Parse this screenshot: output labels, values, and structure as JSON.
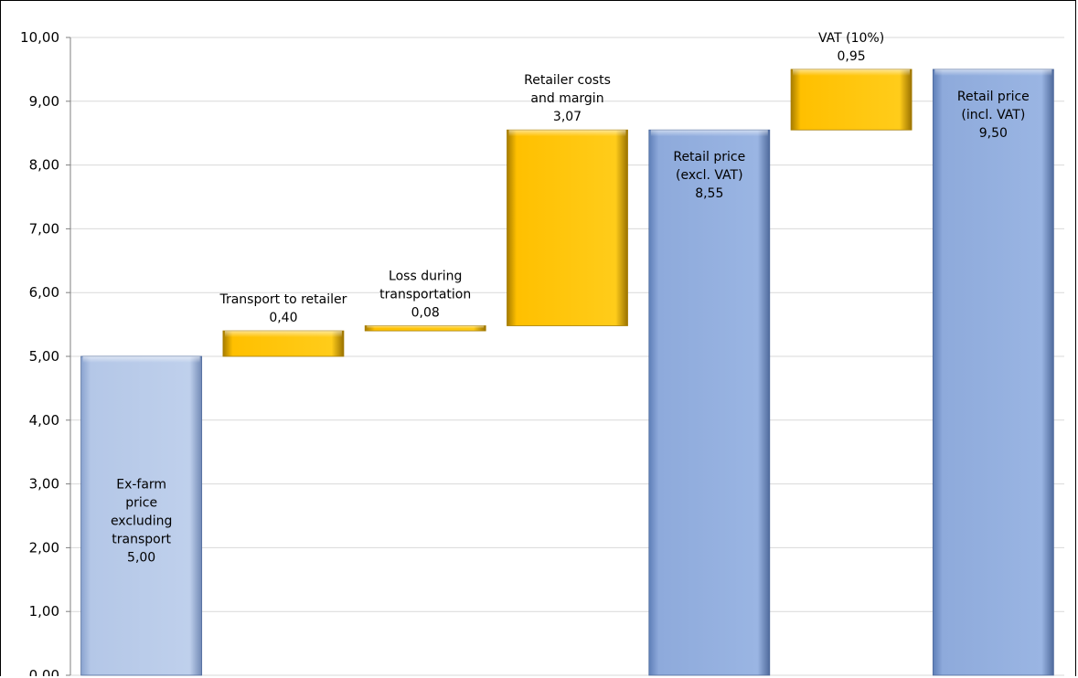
{
  "chart_data": {
    "type": "bar",
    "subtype": "waterfall",
    "ylim": [
      0,
      10
    ],
    "yticks": [
      "0,00",
      "1,00",
      "2,00",
      "3,00",
      "4,00",
      "5,00",
      "6,00",
      "7,00",
      "8,00",
      "9,00",
      "10,00"
    ],
    "grid": true,
    "colors": {
      "total": "#8eaadb",
      "total_first": "#b4c7e7",
      "step": "#ffc000",
      "step_edge": "#a67c00",
      "grid": "#d9d9d9"
    },
    "bars": [
      {
        "kind": "total",
        "label_lines": [
          "Ex-farm",
          "price",
          "excluding",
          "transport",
          "5,00"
        ],
        "base": 0,
        "value": 5.0,
        "label_pos": "inside"
      },
      {
        "kind": "step",
        "label_lines": [
          "Transport to retailer",
          "0,40"
        ],
        "base": 5.0,
        "value": 0.4,
        "label_pos": "above"
      },
      {
        "kind": "step",
        "label_lines": [
          "Loss during",
          "transportation",
          "0,08"
        ],
        "base": 5.4,
        "value": 0.08,
        "label_pos": "above"
      },
      {
        "kind": "step",
        "label_lines": [
          "Retailer costs",
          "and margin",
          "3,07"
        ],
        "base": 5.48,
        "value": 3.07,
        "label_pos": "above"
      },
      {
        "kind": "total",
        "label_lines": [
          "Retail price",
          "(excl. VAT)",
          "8,55"
        ],
        "base": 0,
        "value": 8.55,
        "label_pos": "inside"
      },
      {
        "kind": "step",
        "label_lines": [
          "VAT (10%)",
          "0,95"
        ],
        "base": 8.55,
        "value": 0.95,
        "label_pos": "above"
      },
      {
        "kind": "total",
        "label_lines": [
          "Retail price",
          "(incl. VAT)",
          "9,50"
        ],
        "base": 0,
        "value": 9.5,
        "label_pos": "inside"
      }
    ]
  }
}
